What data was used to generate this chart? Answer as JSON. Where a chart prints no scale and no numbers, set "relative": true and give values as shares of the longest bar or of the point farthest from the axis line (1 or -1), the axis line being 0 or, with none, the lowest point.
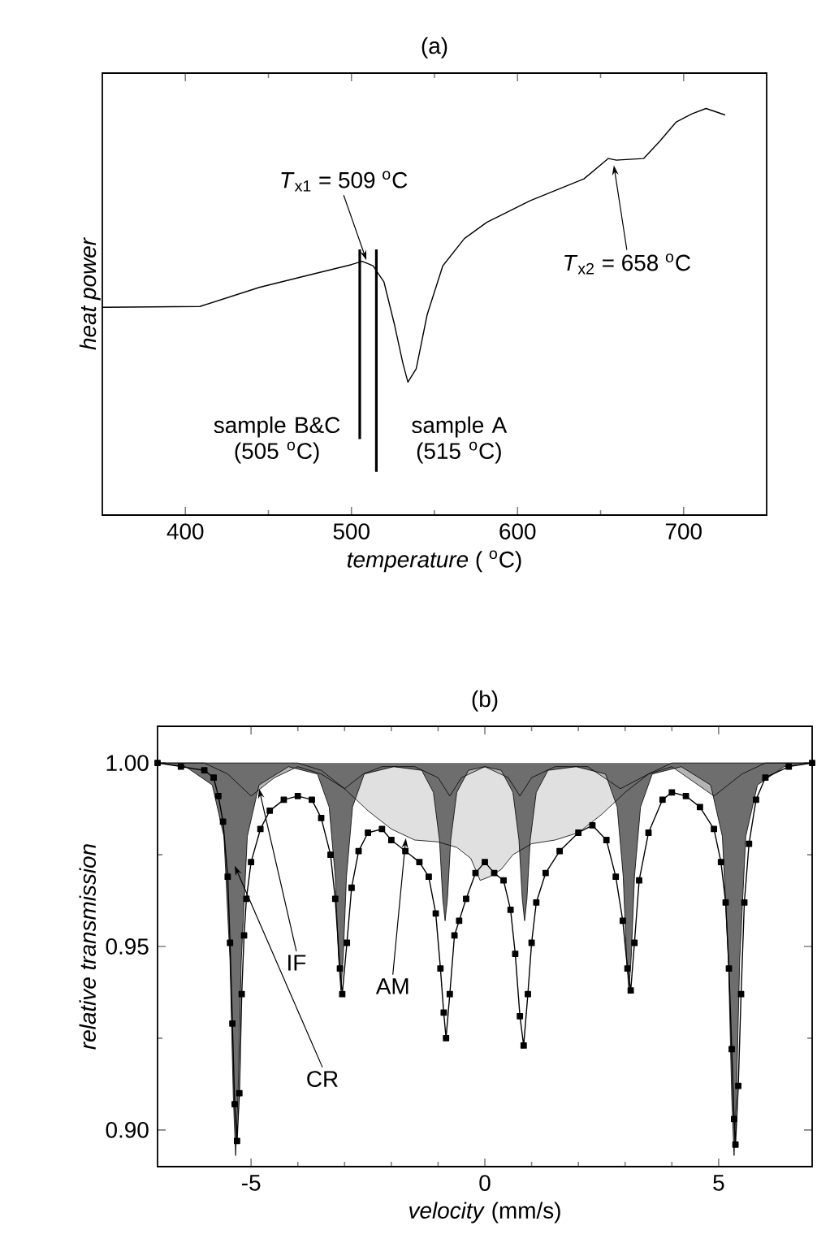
{
  "chart_data": [
    {
      "type": "line",
      "title": "(a)",
      "xlabel": "*temperature* ( $^{o}$C)",
      "ylabel": "heat  power",
      "relative": true,
      "xlim": [
        350,
        750
      ],
      "xticks": [
        400,
        500,
        600,
        700
      ],
      "color": "#000000",
      "x": [
        350,
        408.7,
        444.5,
        477,
        500,
        506.5,
        513,
        519.6,
        526,
        531,
        534,
        539,
        545.6,
        555,
        568,
        581.5,
        607.5,
        640,
        654.7,
        659.6,
        676,
        685.8,
        695.6,
        705,
        713.5,
        725
      ],
      "values": [
        0.511,
        0.513,
        0.56,
        0.593,
        0.616,
        0.624,
        0.613,
        0.573,
        0.467,
        0.373,
        0.327,
        0.36,
        0.493,
        0.613,
        0.68,
        0.72,
        0.773,
        0.827,
        0.877,
        0.873,
        0.877,
        0.92,
        0.967,
        0.987,
        1.0,
        0.984
      ],
      "ref_lines": [
        {
          "axis": "x",
          "value": 505,
          "label": "sample B&C (505 $^{o}$C)"
        },
        {
          "axis": "x",
          "value": 515,
          "label": "sample A (515 $^{o}$C)"
        }
      ],
      "annotations": [
        {
          "text": "*T*$_{x1}$ = 509 $^{o}$C",
          "x": 509,
          "y": 0.627
        },
        {
          "text": "*T*$_{x2}$ = 658 $^{o}$C",
          "x": 658,
          "y": 0.86
        }
      ]
    },
    {
      "type": "line",
      "title": "(b)",
      "xlabel": "*velocity*  (mm/s)",
      "ylabel": "relative transmission",
      "xlim": [
        -7,
        7
      ],
      "xticks": [
        -5,
        0,
        5
      ],
      "ylim": [
        0.89,
        1.01
      ],
      "yticks": [
        {
          "value": 0.9,
          "label": "0.90"
        },
        {
          "value": 0.95,
          "label": "0.95"
        },
        {
          "value": 1.0,
          "label": "1.00"
        }
      ],
      "series": [
        {
          "type": "area",
          "color": "#e0e0e0",
          "x": [
            -7,
            -4,
            -3.5,
            -3.0,
            -2.5,
            -2.0,
            -1.5,
            -1.0,
            -0.6,
            -0.3,
            -0.1,
            0.1,
            0.35,
            0.6,
            1.0,
            1.5,
            2.0,
            2.5,
            3.0,
            3.5,
            4.0,
            7
          ],
          "values": [
            1.0,
            1.0,
            0.998,
            0.993,
            0.987,
            0.982,
            0.979,
            0.9785,
            0.977,
            0.974,
            0.968,
            0.969,
            0.971,
            0.975,
            0.978,
            0.979,
            0.981,
            0.986,
            0.992,
            0.997,
            1.0,
            1.0
          ]
        },
        {
          "type": "area",
          "color": "#b4b4b4",
          "x": [
            -7,
            -6,
            -5.5,
            -5.0,
            -4.5,
            -4.0,
            -3.5,
            -3.0,
            -2.6,
            -2.2,
            -1.5,
            -1.0,
            -0.75,
            -0.5,
            0,
            0.5,
            0.75,
            1.0,
            1.5,
            2.2,
            2.9,
            3.5,
            4.0,
            4.9,
            5.5,
            6,
            7
          ],
          "values": [
            1.0,
            1.0,
            0.997,
            0.991,
            0.996,
            0.999,
            0.997,
            0.993,
            0.997,
            0.999,
            0.999,
            0.996,
            0.991,
            0.996,
            0.999,
            0.996,
            0.991,
            0.996,
            0.999,
            0.999,
            0.993,
            0.997,
            0.999,
            0.991,
            0.997,
            1.0,
            1.0
          ]
        },
        {
          "type": "area",
          "color": "#6e6e6e",
          "x": [
            -7,
            -6.4,
            -5.83,
            -5.58,
            -5.45,
            -5.38,
            -5.33,
            -5.28,
            -5.21,
            -5.08,
            -4.83,
            -4.2,
            -3.58,
            -3.33,
            -3.2,
            -3.13,
            -3.08,
            -3.03,
            -2.96,
            -2.83,
            -2.58,
            -1.95,
            -1.35,
            -1.1,
            -0.97,
            -0.9,
            -0.85,
            -0.8,
            -0.73,
            -0.6,
            -0.35,
            0,
            0.35,
            0.6,
            0.73,
            0.8,
            0.85,
            0.9,
            0.97,
            1.1,
            1.35,
            1.95,
            2.58,
            2.83,
            2.96,
            3.03,
            3.08,
            3.13,
            3.2,
            3.33,
            3.58,
            4.2,
            4.83,
            5.08,
            5.21,
            5.28,
            5.33,
            5.38,
            5.45,
            5.58,
            5.83,
            6.4,
            7
          ],
          "values": [
            1.0,
            0.999,
            0.994,
            0.98,
            0.946,
            0.909,
            0.893,
            0.909,
            0.946,
            0.98,
            0.994,
            0.999,
            0.997,
            0.988,
            0.969,
            0.947,
            0.938,
            0.947,
            0.969,
            0.988,
            0.997,
            0.999,
            0.998,
            0.992,
            0.979,
            0.963,
            0.957,
            0.963,
            0.979,
            0.992,
            0.998,
            0.999,
            0.998,
            0.992,
            0.979,
            0.963,
            0.957,
            0.963,
            0.979,
            0.992,
            0.998,
            0.999,
            0.997,
            0.988,
            0.969,
            0.947,
            0.938,
            0.947,
            0.969,
            0.988,
            0.997,
            0.999,
            0.994,
            0.98,
            0.946,
            0.909,
            0.893,
            0.909,
            0.946,
            0.98,
            0.994,
            0.999,
            1.0
          ]
        },
        {
          "type": "line",
          "color": "#000000",
          "marker": "square",
          "x": [
            -7,
            -6.5,
            -6.0,
            -5.8,
            -5.7,
            -5.6,
            -5.5,
            -5.45,
            -5.4,
            -5.35,
            -5.3,
            -5.25,
            -5.2,
            -5.15,
            -5.1,
            -5.0,
            -4.8,
            -4.6,
            -4.3,
            -4.0,
            -3.7,
            -3.5,
            -3.3,
            -3.2,
            -3.1,
            -3.05,
            -2.95,
            -2.85,
            -2.7,
            -2.5,
            -2.2,
            -2.0,
            -1.7,
            -1.4,
            -1.2,
            -1.05,
            -0.95,
            -0.88,
            -0.83,
            -0.75,
            -0.65,
            -0.55,
            -0.4,
            -0.2,
            0.0,
            0.2,
            0.4,
            0.55,
            0.65,
            0.75,
            0.83,
            0.92,
            1.0,
            1.1,
            1.3,
            1.6,
            2.0,
            2.3,
            2.6,
            2.8,
            2.95,
            3.05,
            3.12,
            3.2,
            3.3,
            3.5,
            3.8,
            4.0,
            4.3,
            4.6,
            4.9,
            5.05,
            5.15,
            5.22,
            5.28,
            5.33,
            5.36,
            5.42,
            5.48,
            5.55,
            5.65,
            5.8,
            6.0,
            6.5,
            7.0
          ],
          "values": [
            1.0,
            0.999,
            0.998,
            0.996,
            0.991,
            0.984,
            0.969,
            0.951,
            0.929,
            0.907,
            0.897,
            0.91,
            0.937,
            0.953,
            0.963,
            0.973,
            0.982,
            0.987,
            0.99,
            0.991,
            0.99,
            0.985,
            0.975,
            0.963,
            0.944,
            0.937,
            0.951,
            0.966,
            0.976,
            0.981,
            0.982,
            0.979,
            0.976,
            0.973,
            0.969,
            0.959,
            0.944,
            0.932,
            0.925,
            0.937,
            0.953,
            0.957,
            0.963,
            0.97,
            0.973,
            0.97,
            0.968,
            0.96,
            0.948,
            0.931,
            0.923,
            0.937,
            0.951,
            0.962,
            0.97,
            0.976,
            0.981,
            0.983,
            0.979,
            0.969,
            0.957,
            0.944,
            0.938,
            0.951,
            0.968,
            0.981,
            0.99,
            0.992,
            0.991,
            0.988,
            0.982,
            0.973,
            0.962,
            0.944,
            0.922,
            0.903,
            0.896,
            0.912,
            0.937,
            0.962,
            0.978,
            0.99,
            0.996,
            0.999,
            1.0
          ]
        }
      ],
      "annotations": [
        {
          "text": "IF",
          "x": -4.83,
          "y": 0.993
        },
        {
          "text": "AM",
          "x": -1.69,
          "y": 0.9795
        },
        {
          "text": "CR",
          "x": -5.35,
          "y": 0.972
        }
      ]
    }
  ]
}
